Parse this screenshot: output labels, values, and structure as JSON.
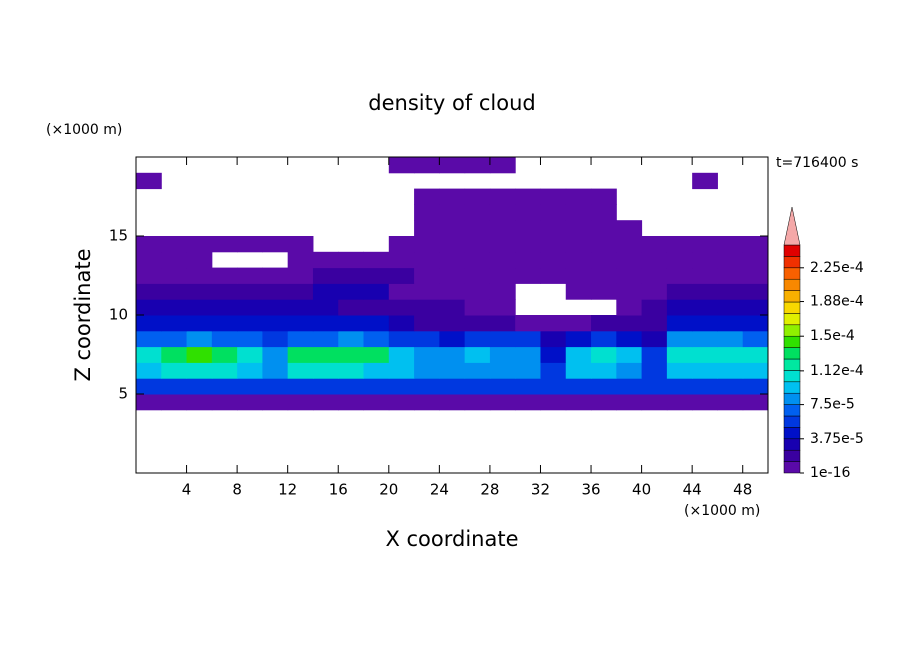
{
  "chart_data": {
    "type": "contour",
    "title": "density of cloud",
    "subtitle": "t=716400 s",
    "x_label": "X coordinate",
    "y_label": "Z coordinate",
    "x_unit": "(×1000 m)",
    "y_unit": "(×1000 m)",
    "xlim": [
      0,
      50
    ],
    "ylim": [
      0,
      20
    ],
    "xticks": [
      4,
      8,
      12,
      16,
      20,
      24,
      28,
      32,
      36,
      40,
      44,
      48
    ],
    "yticks": [
      5,
      10,
      15
    ],
    "x": [
      1,
      3,
      5,
      7,
      9,
      11,
      13,
      15,
      17,
      19,
      21,
      23,
      25,
      27,
      29,
      31,
      33,
      35,
      37,
      39,
      41,
      43,
      45,
      47,
      49
    ],
    "z": [
      4.5,
      5.5,
      6.5,
      7.5,
      8.5,
      9.5,
      10.5,
      11.5,
      12.5,
      13.5,
      14.5,
      15.5,
      16.5,
      17.5,
      18.5,
      19.5
    ],
    "values": [
      [
        1e-05,
        1e-05,
        1e-05,
        1e-05,
        1e-05,
        1e-05,
        1e-05,
        1e-05,
        1e-05,
        1e-05,
        1e-05,
        1e-05,
        1e-05,
        1e-05,
        1e-05,
        1e-05,
        1e-05,
        1e-05,
        1e-05,
        1e-05,
        1e-05,
        1e-05,
        1e-05,
        1e-05,
        1e-05
      ],
      [
        5e-05,
        5e-05,
        5e-05,
        5e-05,
        5e-05,
        5e-05,
        5e-05,
        5e-05,
        5e-05,
        5e-05,
        5e-05,
        5e-05,
        5e-05,
        5e-05,
        5e-05,
        5e-05,
        5e-05,
        5e-05,
        5e-05,
        5e-05,
        5e-05,
        5e-05,
        5e-05,
        5e-05,
        5e-05
      ],
      [
        9e-05,
        0.0001,
        0.0001,
        0.0001,
        9e-05,
        8e-05,
        0.0001,
        0.0001,
        0.0001,
        9e-05,
        9e-05,
        8e-05,
        8e-05,
        8e-05,
        8e-05,
        8e-05,
        6e-05,
        9e-05,
        9e-05,
        8e-05,
        6e-05,
        9e-05,
        9e-05,
        9e-05,
        9e-05
      ],
      [
        0.00011,
        0.000135,
        0.00014,
        0.000135,
        0.00011,
        8e-05,
        0.000125,
        0.00013,
        0.00013,
        0.000125,
        9e-05,
        8e-05,
        8e-05,
        9e-05,
        8e-05,
        8e-05,
        4e-05,
        9e-05,
        0.0001,
        9e-05,
        5e-05,
        0.0001,
        0.00011,
        0.00011,
        0.000105
      ],
      [
        7e-05,
        7e-05,
        8e-05,
        7e-05,
        7e-05,
        6e-05,
        7e-05,
        7e-05,
        8e-05,
        7e-05,
        6e-05,
        5e-05,
        4e-05,
        5e-05,
        5e-05,
        5e-05,
        3e-05,
        4e-05,
        5e-05,
        4e-05,
        3e-05,
        8e-05,
        8e-05,
        8e-05,
        7e-05
      ],
      [
        4.5e-05,
        4e-05,
        4.5e-05,
        4e-05,
        4e-05,
        4e-05,
        4.5e-05,
        4e-05,
        4e-05,
        4e-05,
        3e-05,
        2e-05,
        2e-05,
        2e-05,
        2e-05,
        1e-05,
        1e-05,
        1e-05,
        2e-05,
        2e-05,
        2e-05,
        4.5e-05,
        4.5e-05,
        4e-05,
        4e-05
      ],
      [
        2.5e-05,
        2.5e-05,
        2.5e-05,
        2.5e-05,
        3e-05,
        2.5e-05,
        2.5e-05,
        2.5e-05,
        2e-05,
        2e-05,
        1.5e-05,
        1.5e-05,
        1.5e-05,
        1e-05,
        1e-05,
        null,
        null,
        null,
        null,
        1e-05,
        2e-05,
        2.5e-05,
        2.5e-05,
        2.5e-05,
        2.5e-05
      ],
      [
        1.5e-05,
        1.5e-05,
        1.5e-05,
        1.5e-05,
        1.5e-05,
        1.5e-05,
        2e-05,
        2.5e-05,
        2.5e-05,
        2.5e-05,
        1e-05,
        1e-05,
        1e-05,
        5e-06,
        5e-06,
        null,
        null,
        5e-06,
        5e-06,
        5e-06,
        5e-06,
        1.5e-05,
        1.5e-05,
        1.5e-05,
        1.5e-05
      ],
      [
        5e-06,
        5e-06,
        5e-06,
        5e-06,
        5e-06,
        5e-06,
        5e-06,
        1.5e-05,
        1.5e-05,
        1.5e-05,
        1.5e-05,
        5e-06,
        5e-06,
        5e-06,
        5e-06,
        5e-06,
        5e-06,
        5e-06,
        5e-06,
        5e-06,
        5e-06,
        5e-06,
        5e-06,
        5e-06,
        5e-06
      ],
      [
        5e-06,
        5e-06,
        5e-06,
        null,
        null,
        null,
        5e-06,
        5e-06,
        5e-06,
        5e-06,
        5e-06,
        5e-06,
        5e-06,
        5e-06,
        5e-06,
        5e-06,
        5e-06,
        5e-06,
        5e-06,
        5e-06,
        5e-06,
        5e-06,
        5e-06,
        5e-06,
        5e-06
      ],
      [
        5e-06,
        5e-06,
        5e-06,
        5e-06,
        5e-06,
        5e-06,
        5e-06,
        null,
        null,
        null,
        5e-06,
        5e-06,
        5e-06,
        5e-06,
        5e-06,
        5e-06,
        5e-06,
        5e-06,
        5e-06,
        5e-06,
        5e-06,
        5e-06,
        5e-06,
        5e-06,
        5e-06
      ],
      [
        null,
        null,
        null,
        null,
        null,
        null,
        null,
        null,
        null,
        null,
        null,
        5e-06,
        5e-06,
        5e-06,
        5e-06,
        5e-06,
        5e-06,
        5e-06,
        5e-06,
        5e-06,
        null,
        null,
        null,
        null,
        null
      ],
      [
        null,
        null,
        null,
        null,
        null,
        null,
        null,
        null,
        null,
        null,
        null,
        5e-06,
        5e-06,
        5e-06,
        5e-06,
        5e-06,
        5e-06,
        5e-06,
        5e-06,
        null,
        null,
        null,
        null,
        null,
        null
      ],
      [
        null,
        null,
        null,
        null,
        null,
        null,
        null,
        null,
        null,
        null,
        null,
        5e-06,
        5e-06,
        5e-06,
        5e-06,
        5e-06,
        5e-06,
        5e-06,
        5e-06,
        null,
        null,
        null,
        null,
        null,
        null
      ],
      [
        5e-06,
        null,
        null,
        null,
        null,
        null,
        null,
        null,
        null,
        null,
        null,
        null,
        null,
        null,
        null,
        null,
        null,
        null,
        null,
        null,
        null,
        null,
        5e-06,
        null,
        null
      ],
      [
        null,
        null,
        null,
        null,
        null,
        null,
        null,
        null,
        null,
        null,
        5e-06,
        5e-06,
        5e-06,
        5e-06,
        5e-06,
        null,
        null,
        null,
        null,
        null,
        null,
        null,
        null,
        null,
        null
      ]
    ],
    "colorbar": {
      "clim": [
        0,
        0.00025
      ],
      "levels": [
        1e-16,
        1.25e-05,
        2.5e-05,
        3.75e-05,
        5e-05,
        6.25e-05,
        7.5e-05,
        8.75e-05,
        0.0001,
        0.0001125,
        0.000125,
        0.0001375,
        0.00015,
        0.0001625,
        0.000175,
        0.0001875,
        0.0002,
        0.0002125,
        0.000225,
        0.0002375
      ],
      "colors": [
        "#5a0aa8",
        "#3a00a0",
        "#1800b0",
        "#0010c8",
        "#0038e0",
        "#0060f0",
        "#0090f0",
        "#00c0f0",
        "#00e0d0",
        "#00e8a0",
        "#00e060",
        "#30e000",
        "#90f000",
        "#e0f000",
        "#f8d800",
        "#f8b000",
        "#f88800",
        "#f86000",
        "#f03000",
        "#e00000"
      ],
      "over_color": "#f4a8a8",
      "ticks": [
        {
          "value": 1e-16,
          "label": "1e-16"
        },
        {
          "value": 3.75e-05,
          "label": "3.75e-5"
        },
        {
          "value": 7.5e-05,
          "label": "7.5e-5"
        },
        {
          "value": 0.000112,
          "label": "1.12e-4"
        },
        {
          "value": 0.00015,
          "label": "1.5e-4"
        },
        {
          "value": 0.000188,
          "label": "1.88e-4"
        },
        {
          "value": 0.000225,
          "label": "2.25e-4"
        }
      ]
    }
  }
}
